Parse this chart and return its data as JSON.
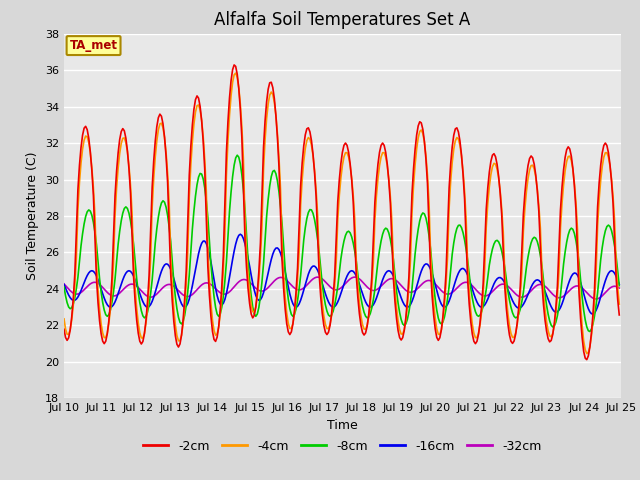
{
  "title": "Alfalfa Soil Temperatures Set A",
  "xlabel": "Time",
  "ylabel": "Soil Temperature (C)",
  "ylim": [
    18,
    38
  ],
  "annotation_text": "TA_met",
  "line_colors": {
    "-2cm": "#ee0000",
    "-4cm": "#ff9900",
    "-8cm": "#00cc00",
    "-16cm": "#0000ee",
    "-32cm": "#bb00bb"
  },
  "legend_labels": [
    "-2cm",
    "-4cm",
    "-8cm",
    "-16cm",
    "-32cm"
  ],
  "x_tick_labels": [
    "Jul 10",
    "Jul 11",
    "Jul 12",
    "Jul 13",
    "Jul 14",
    "Jul 15",
    "Jul 16",
    "Jul 17",
    "Jul 18",
    "Jul 19",
    "Jul 20",
    "Jul 21",
    "Jul 22",
    "Jul 23",
    "Jul 24",
    "Jul 25"
  ],
  "outer_bg": "#d8d8d8",
  "plot_bg": "#e8e8e8",
  "title_fontsize": 12,
  "axis_label_fontsize": 9,
  "tick_fontsize": 8,
  "legend_fontsize": 9,
  "linewidth": 1.2
}
